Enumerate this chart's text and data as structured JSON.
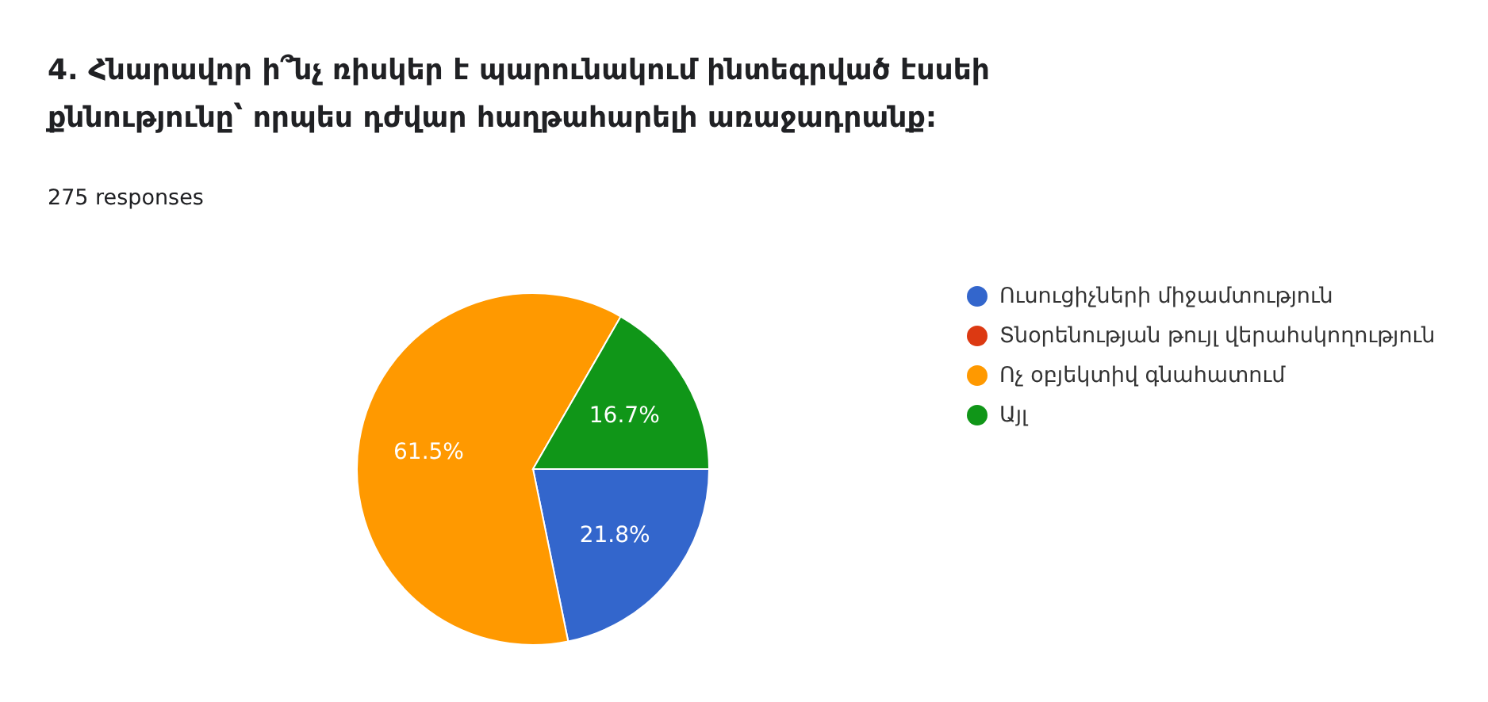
{
  "chart_data": {
    "type": "pie",
    "title": "4. Հնարավոր ի՞նչ ռիսկեր է պարունակում ինտեգրված էսսեի քննությունը՝ որպես դժվար հաղթահարելի առաջադրանք:",
    "subtitle": "275 responses",
    "categories": [
      "Ուսուցիչների միջամտություն",
      "Տնօրենության թույլ վերահսկողություն",
      "Ոչ օբյեկտիվ գնահատում",
      "Այլ"
    ],
    "values": [
      21.8,
      0,
      61.5,
      16.7
    ],
    "colors": [
      "#3366cc",
      "#dc3912",
      "#ff9900",
      "#109618"
    ],
    "value_labels": [
      "21.8%",
      null,
      "61.5%",
      "16.7%"
    ],
    "legend": "right"
  }
}
